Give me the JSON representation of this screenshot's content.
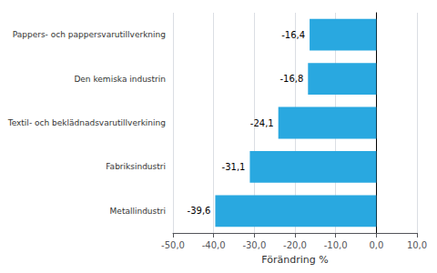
{
  "chart_data": {
    "type": "bar",
    "orientation": "horizontal",
    "categories": [
      "Metallindustri",
      "Fabriksindustri",
      "Textil- och beklädnadsvarutillverkining",
      "Den kemiska industrin",
      "Pappers- och pappersvarutillverkning"
    ],
    "values": [
      -39.6,
      -31.1,
      -24.1,
      -16.8,
      -16.4
    ],
    "value_labels": [
      "-39,6",
      "-31,1",
      "-24,1",
      "-16,8",
      "-16,4"
    ],
    "data_labels": true,
    "color": "#29a8e0",
    "xlabel": "Förändring %",
    "xlim": [
      -50,
      10
    ],
    "xticks": [
      {
        "value": -50,
        "label": "-50,0"
      },
      {
        "value": -40,
        "label": "-40,0"
      },
      {
        "value": -30,
        "label": "-30,0"
      },
      {
        "value": -20,
        "label": "-20,0"
      },
      {
        "value": -10,
        "label": "-10,0"
      },
      {
        "value": 0,
        "label": "0,0"
      },
      {
        "value": 10,
        "label": "10,0"
      }
    ],
    "grid": true
  }
}
